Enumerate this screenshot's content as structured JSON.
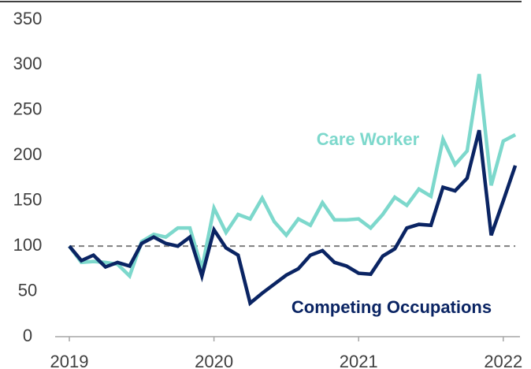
{
  "chart_data": {
    "type": "line",
    "categories": [
      "2019",
      null,
      null,
      null,
      null,
      null,
      null,
      null,
      null,
      null,
      null,
      null,
      "2020",
      null,
      null,
      null,
      null,
      null,
      null,
      null,
      null,
      null,
      null,
      null,
      "2021",
      null,
      null,
      null,
      null,
      null,
      null,
      null,
      null,
      null,
      null,
      null,
      "2022",
      null
    ],
    "series": [
      {
        "name": "Care Worker",
        "color": "#7dd8cc",
        "values": [
          100,
          82,
          83,
          82,
          80,
          67,
          105,
          113,
          110,
          120,
          120,
          75,
          142,
          115,
          135,
          130,
          153,
          127,
          112,
          130,
          123,
          148,
          129,
          129,
          130,
          120,
          135,
          154,
          145,
          163,
          155,
          218,
          190,
          205,
          290,
          167,
          216,
          223
        ]
      },
      {
        "name": "Competing Occupations",
        "color": "#0a2463",
        "values": [
          100,
          84,
          90,
          77,
          82,
          78,
          103,
          110,
          103,
          100,
          110,
          67,
          118,
          98,
          90,
          37,
          48,
          58,
          68,
          75,
          90,
          95,
          82,
          78,
          70,
          69,
          89,
          97,
          120,
          124,
          123,
          165,
          161,
          175,
          228,
          112,
          150,
          189
        ]
      }
    ],
    "reference_line": 100,
    "ylim": [
      0,
      350
    ],
    "yticks": [
      0,
      50,
      100,
      150,
      200,
      250,
      300,
      350
    ],
    "grid": false
  }
}
